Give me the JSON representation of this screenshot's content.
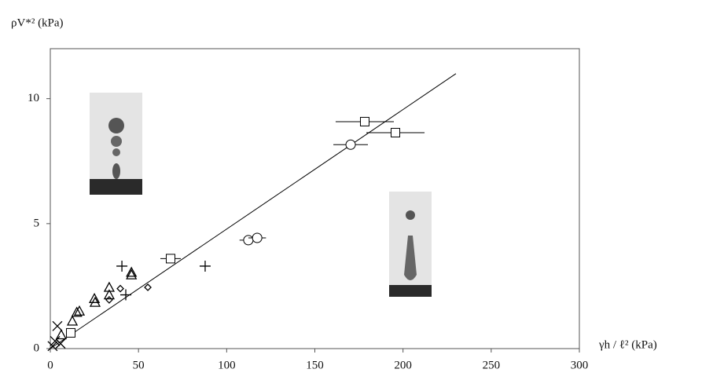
{
  "chart_data": {
    "type": "scatter",
    "y_label": "ρV*² (kPa)",
    "x_label": "γh / ℓ² (kPa)",
    "xlim": [
      0,
      300
    ],
    "xticks": [
      0,
      50,
      100,
      150,
      200,
      250,
      300
    ],
    "ylim": [
      0,
      12
    ],
    "yticks": [
      0,
      5,
      10
    ],
    "fit": {
      "x": [
        0,
        230
      ],
      "values": [
        0,
        11
      ],
      "color": "#000000"
    },
    "series": [
      {
        "marker": "square",
        "color": "#000000",
        "x": [
          178.3,
          195.7,
          68.2,
          11.6
        ],
        "values": [
          9.08,
          8.64,
          3.6,
          0.63
        ],
        "xerr": [
          16.5,
          16.5,
          5.8,
          0
        ]
      },
      {
        "marker": "circle",
        "color": "#000000",
        "x": [
          170.3,
          112.3,
          117.3
        ],
        "values": [
          8.16,
          4.34,
          4.43
        ],
        "xerr": [
          9.8,
          5,
          5
        ]
      },
      {
        "marker": "triangle",
        "color": "#000000",
        "x": [
          6.2,
          12.5,
          15,
          16.5,
          25,
          25.4,
          33.4,
          33.4,
          46,
          46
        ],
        "values": [
          0.55,
          1.1,
          1.45,
          1.5,
          2.0,
          1.85,
          2.45,
          2.15,
          3.05,
          2.95
        ]
      },
      {
        "marker": "diamond",
        "color": "#000000",
        "x": [
          33.4,
          39.7,
          55.3
        ],
        "values": [
          1.95,
          2.4,
          2.45
        ]
      },
      {
        "marker": "plus",
        "color": "#000000",
        "x": [
          40.6,
          42.8,
          87.8
        ],
        "values": [
          3.3,
          2.15,
          3.3
        ]
      },
      {
        "marker": "cross",
        "color": "#000000",
        "x": [
          4,
          2.7,
          5.8,
          1.3
        ],
        "values": [
          0.9,
          0.3,
          0.2,
          0.1
        ]
      }
    ]
  }
}
